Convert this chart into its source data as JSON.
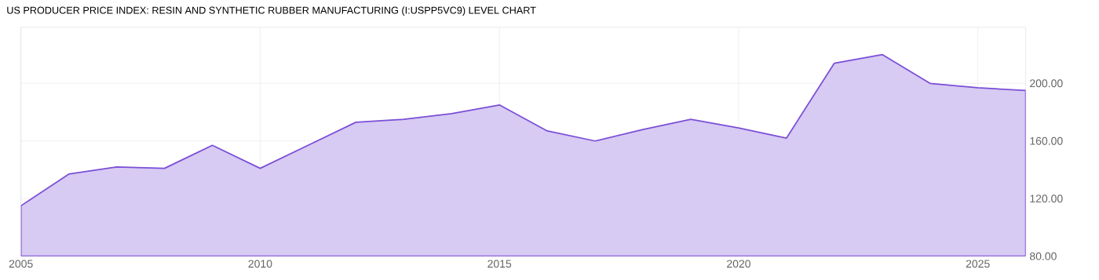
{
  "chart_data": {
    "type": "area",
    "title": "US PRODUCER PRICE INDEX: RESIN AND SYNTHETIC RUBBER MANUFACTURING (I:USPP5VC9) LEVEL CHART",
    "x": [
      2005,
      2006,
      2007,
      2008,
      2009,
      2010,
      2011,
      2012,
      2013,
      2014,
      2015,
      2016,
      2017,
      2018,
      2019,
      2020,
      2021,
      2022,
      2023,
      2024,
      2025,
      2026
    ],
    "values": [
      115,
      137,
      142,
      141,
      157,
      141,
      157,
      173,
      175,
      179,
      185,
      167,
      160,
      168,
      175,
      169,
      162,
      214,
      220,
      200,
      197,
      195
    ],
    "color": "#7b4fd6",
    "xlim": [
      2005,
      2026
    ],
    "xticks": [
      2005,
      2010,
      2015,
      2020,
      2025
    ],
    "ylim": [
      80,
      239
    ],
    "yticks": [
      {
        "value": 80,
        "label": "80.00"
      },
      {
        "value": 120,
        "label": "120.00"
      },
      {
        "value": 160,
        "label": "160.00"
      },
      {
        "value": 200,
        "label": "200.00"
      }
    ],
    "grid": true
  }
}
